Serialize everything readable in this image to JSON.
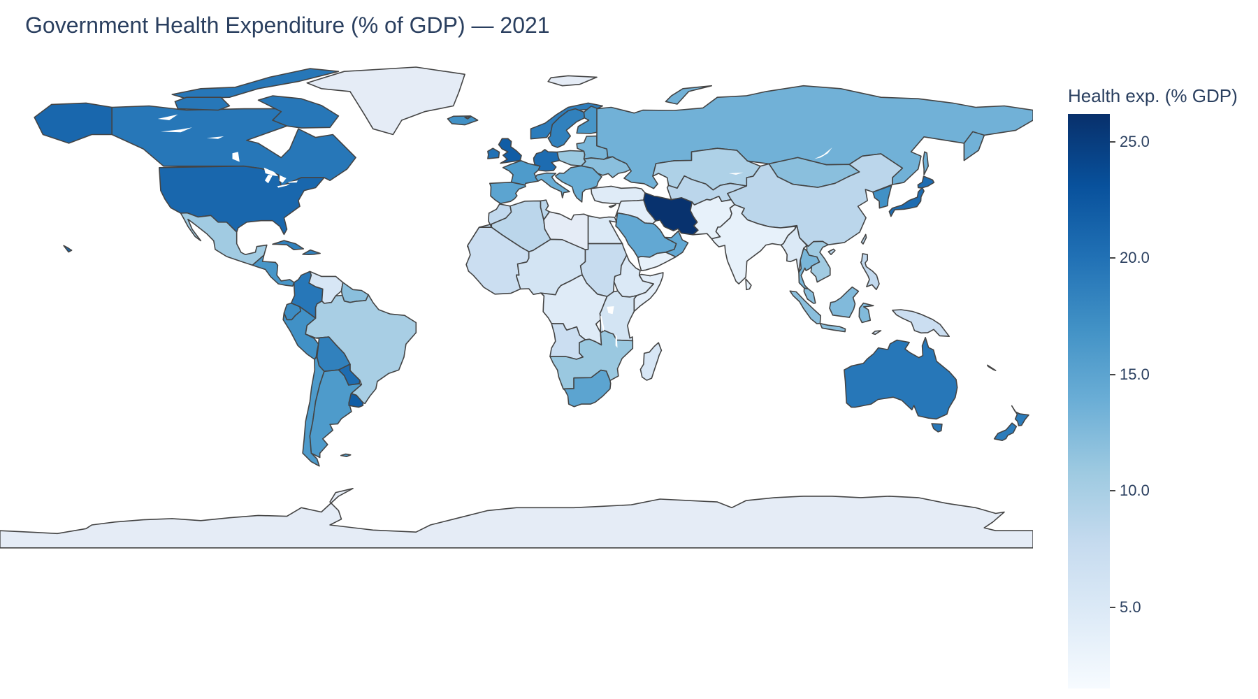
{
  "title": "Government Health Expenditure (% of GDP) — 2021",
  "chart_data": {
    "type": "choropleth",
    "title": "Government Health Expenditure (% of GDP) — 2021",
    "projection": "equirectangular",
    "colorscale": "Blues",
    "colorscale_stops": [
      "#f7fbff",
      "#deebf7",
      "#c6dbef",
      "#9ecae1",
      "#6baed6",
      "#4292c6",
      "#2171b5",
      "#08519c",
      "#08306b"
    ],
    "land_no_data_color": "#e5ecf6",
    "border_color": "#444444",
    "colorbar": {
      "title": "Health exp. (% GDP)",
      "range": [
        1.5,
        26.2
      ],
      "ticks": [
        25,
        20,
        15,
        10,
        5
      ],
      "tick_labels": [
        "25.0",
        "20.0",
        "15.0",
        "10.0",
        "5.0"
      ]
    },
    "regions": [
      {
        "name": "Greenland",
        "value": null
      },
      {
        "name": "Canada",
        "value": 19.5
      },
      {
        "name": "United States",
        "value": 21.0
      },
      {
        "name": "Alaska",
        "value": 21.0
      },
      {
        "name": "Mexico",
        "value": 10.5
      },
      {
        "name": "Central America",
        "value": 16.5
      },
      {
        "name": "Cuba",
        "value": 18.5
      },
      {
        "name": "Colombia",
        "value": 19.5
      },
      {
        "name": "Venezuela",
        "value": 5.5
      },
      {
        "name": "Guianas",
        "value": 12.0
      },
      {
        "name": "Ecuador",
        "value": 17.5
      },
      {
        "name": "Peru",
        "value": 17.0
      },
      {
        "name": "Brazil",
        "value": 10.0
      },
      {
        "name": "Bolivia",
        "value": 18.5
      },
      {
        "name": "Paraguay",
        "value": 20.5
      },
      {
        "name": "Chile",
        "value": 16.0
      },
      {
        "name": "Argentina",
        "value": 16.0
      },
      {
        "name": "Uruguay",
        "value": 22.0
      },
      {
        "name": "Iceland",
        "value": 17.0
      },
      {
        "name": "United Kingdom",
        "value": 22.0
      },
      {
        "name": "Ireland",
        "value": 20.0
      },
      {
        "name": "Norway",
        "value": 19.0
      },
      {
        "name": "Sweden",
        "value": 18.5
      },
      {
        "name": "Finland",
        "value": 16.5
      },
      {
        "name": "France",
        "value": 16.0
      },
      {
        "name": "Germany",
        "value": 20.5
      },
      {
        "name": "Spain",
        "value": 15.0
      },
      {
        "name": "Italy",
        "value": 14.0
      },
      {
        "name": "Poland",
        "value": 11.0
      },
      {
        "name": "Ukraine",
        "value": 12.0
      },
      {
        "name": "Eastern Europe",
        "value": 13.0
      },
      {
        "name": "Balkans",
        "value": 14.0
      },
      {
        "name": "Turkey",
        "value": 4.5
      },
      {
        "name": "Russia",
        "value": 13.5
      },
      {
        "name": "Kazakhstan",
        "value": 9.5
      },
      {
        "name": "Central Asia",
        "value": 8.5
      },
      {
        "name": "Mongolia",
        "value": 12.0
      },
      {
        "name": "China",
        "value": 8.5
      },
      {
        "name": "Korea",
        "value": 17.0
      },
      {
        "name": "Japan",
        "value": 20.5
      },
      {
        "name": "Iran",
        "value": 26.0
      },
      {
        "name": "Iraq & Levant",
        "value": 4.0
      },
      {
        "name": "Saudi Arabia",
        "value": 14.5
      },
      {
        "name": "Yemen",
        "value": 3.5
      },
      {
        "name": "Afghanistan & Pakistan",
        "value": 3.5
      },
      {
        "name": "India",
        "value": 3.5
      },
      {
        "name": "Myanmar",
        "value": 5.0
      },
      {
        "name": "Thailand",
        "value": 13.0
      },
      {
        "name": "Vietnam & Laos",
        "value": 10.5
      },
      {
        "name": "Philippines",
        "value": 8.0
      },
      {
        "name": "Malaysia & Sumatra",
        "value": 12.0
      },
      {
        "name": "Borneo",
        "value": 12.5
      },
      {
        "name": "Papua New Guinea",
        "value": 7.0
      },
      {
        "name": "Australia",
        "value": 19.5
      },
      {
        "name": "New Zealand",
        "value": 19.0
      },
      {
        "name": "Morocco",
        "value": 8.0
      },
      {
        "name": "Algeria",
        "value": 8.5
      },
      {
        "name": "Libya",
        "value": null
      },
      {
        "name": "Egypt",
        "value": 5.0
      },
      {
        "name": "West Africa",
        "value": 7.0
      },
      {
        "name": "Sahel",
        "value": 6.0
      },
      {
        "name": "Sudan",
        "value": 7.5
      },
      {
        "name": "Ethiopia",
        "value": 5.0
      },
      {
        "name": "Somalia",
        "value": 4.0
      },
      {
        "name": "Central Africa",
        "value": 4.5
      },
      {
        "name": "East Africa",
        "value": 6.0
      },
      {
        "name": "Angola",
        "value": 7.0
      },
      {
        "name": "Southern Africa",
        "value": 11.0
      },
      {
        "name": "South Africa",
        "value": 15.0
      },
      {
        "name": "Madagascar",
        "value": 5.5
      },
      {
        "name": "Antarctica",
        "value": null
      }
    ]
  }
}
